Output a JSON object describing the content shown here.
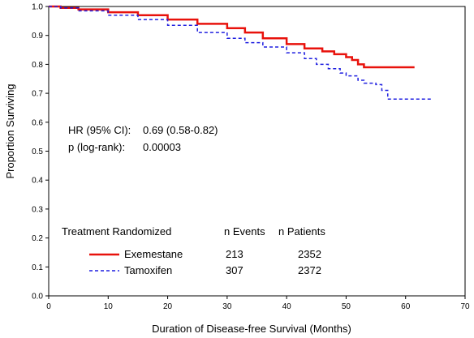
{
  "chart_data": {
    "type": "line",
    "xlabel": "Duration of Disease-free Survival  (Months)",
    "ylabel": "Proportion Surviving",
    "xlim": [
      0,
      70
    ],
    "ylim": [
      0.0,
      1.0
    ],
    "x_ticks": [
      "0",
      "10",
      "20",
      "30",
      "40",
      "50",
      "60",
      "70"
    ],
    "y_ticks": [
      "0.0",
      "0.1",
      "0.2",
      "0.3",
      "0.4",
      "0.5",
      "0.6",
      "0.7",
      "0.8",
      "0.9",
      "1.0"
    ],
    "grid": false,
    "annotations": {
      "hr_label": "HR (95% CI):",
      "hr_value": "0.69 (0.58-0.82)",
      "p_label": "p (log-rank):",
      "p_value": "0.00003"
    },
    "table": {
      "headers": [
        "Treatment Randomized",
        "n Events",
        "n Patients"
      ],
      "rows": [
        {
          "name": "Exemestane",
          "events": "213",
          "patients": "2352"
        },
        {
          "name": "Tamoxifen",
          "events": "307",
          "patients": "2372"
        }
      ]
    },
    "series": [
      {
        "name": "Exemestane",
        "color": "#e8120c",
        "style": "solid",
        "x": [
          0,
          2,
          5,
          10,
          15,
          20,
          25,
          30,
          33,
          36,
          40,
          43,
          46,
          48,
          50,
          51,
          52,
          53,
          55,
          58,
          61.5
        ],
        "y": [
          1.0,
          0.995,
          0.99,
          0.98,
          0.97,
          0.955,
          0.94,
          0.925,
          0.91,
          0.89,
          0.87,
          0.855,
          0.845,
          0.835,
          0.825,
          0.815,
          0.8,
          0.79,
          0.79,
          0.79,
          0.79
        ]
      },
      {
        "name": "Tamoxifen",
        "color": "#1f1fe0",
        "style": "dashed",
        "x": [
          0,
          2,
          5,
          10,
          15,
          20,
          25,
          30,
          33,
          36,
          40,
          43,
          45,
          47,
          49,
          50,
          52,
          53,
          55,
          56,
          57,
          60,
          64.5
        ],
        "y": [
          1.0,
          0.995,
          0.985,
          0.97,
          0.955,
          0.935,
          0.91,
          0.89,
          0.875,
          0.86,
          0.84,
          0.82,
          0.8,
          0.785,
          0.77,
          0.76,
          0.745,
          0.735,
          0.73,
          0.71,
          0.68,
          0.68,
          0.68
        ]
      }
    ]
  }
}
